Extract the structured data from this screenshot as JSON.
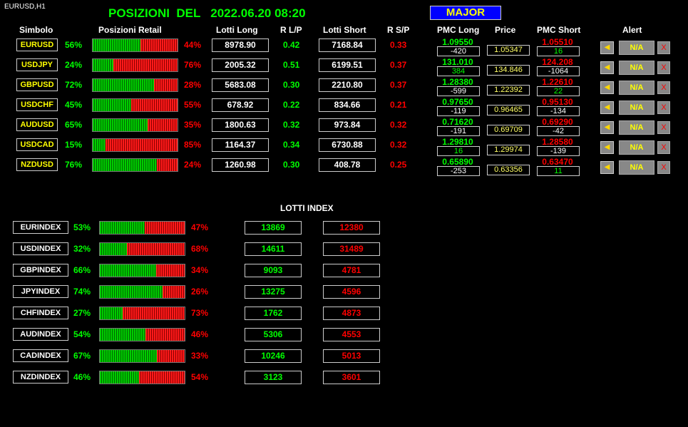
{
  "chart_label": "EURUSD,H1",
  "title": {
    "prefix": "POSIZIONI  DEL",
    "datetime": "2022.06.20 08:20"
  },
  "major_button": "MAJOR",
  "headers": {
    "symbol": "Simbolo",
    "retail": "Posizioni Retail",
    "lots_long": "Lotti Long",
    "r_lp": "R L/P",
    "lots_short": "Lotti Short",
    "r_sp": "R S/P",
    "pmc_long": "PMC Long",
    "price": "Price",
    "pmc_short": "PMC Short",
    "alert": "Alert"
  },
  "pairs": [
    {
      "symbol": "EURUSD",
      "long_pct": "56%",
      "long_frac": 0.56,
      "short_pct": "44%",
      "lots_long": "8978.90",
      "r_lp": "0.42",
      "lots_short": "7168.84",
      "r_sp": "0.33",
      "pmc_long": "1.09550",
      "pmc_long_diff": "-420",
      "pmc_long_diff_color": "#ffffff",
      "price": "1.05347",
      "pmc_short": "1.05510",
      "pmc_short_diff": "16",
      "pmc_short_diff_color": "#00ff00",
      "alert": "N/A"
    },
    {
      "symbol": "USDJPY",
      "long_pct": "24%",
      "long_frac": 0.24,
      "short_pct": "76%",
      "lots_long": "2005.32",
      "r_lp": "0.51",
      "lots_short": "6199.51",
      "r_sp": "0.37",
      "pmc_long": "131.010",
      "pmc_long_diff": "384",
      "pmc_long_diff_color": "#00ff00",
      "price": "134.846",
      "pmc_short": "124.208",
      "pmc_short_diff": "-1064",
      "pmc_short_diff_color": "#ffffff",
      "alert": "N/A"
    },
    {
      "symbol": "GBPUSD",
      "long_pct": "72%",
      "long_frac": 0.72,
      "short_pct": "28%",
      "lots_long": "5683.08",
      "r_lp": "0.30",
      "lots_short": "2210.80",
      "r_sp": "0.37",
      "pmc_long": "1.28380",
      "pmc_long_diff": "-599",
      "pmc_long_diff_color": "#ffffff",
      "price": "1.22392",
      "pmc_short": "1.22610",
      "pmc_short_diff": "22",
      "pmc_short_diff_color": "#00ff00",
      "alert": "N/A"
    },
    {
      "symbol": "USDCHF",
      "long_pct": "45%",
      "long_frac": 0.45,
      "short_pct": "55%",
      "lots_long": "678.92",
      "r_lp": "0.22",
      "lots_short": "834.66",
      "r_sp": "0.21",
      "pmc_long": "0.97650",
      "pmc_long_diff": "-119",
      "pmc_long_diff_color": "#ffffff",
      "price": "0.96465",
      "pmc_short": "0.95130",
      "pmc_short_diff": "-134",
      "pmc_short_diff_color": "#ffffff",
      "alert": "N/A"
    },
    {
      "symbol": "AUDUSD",
      "long_pct": "65%",
      "long_frac": 0.65,
      "short_pct": "35%",
      "lots_long": "1800.63",
      "r_lp": "0.32",
      "lots_short": "973.84",
      "r_sp": "0.32",
      "pmc_long": "0.71620",
      "pmc_long_diff": "-191",
      "pmc_long_diff_color": "#ffffff",
      "price": "0.69709",
      "pmc_short": "0.69290",
      "pmc_short_diff": "-42",
      "pmc_short_diff_color": "#ffffff",
      "alert": "N/A"
    },
    {
      "symbol": "USDCAD",
      "long_pct": "15%",
      "long_frac": 0.15,
      "short_pct": "85%",
      "lots_long": "1164.37",
      "r_lp": "0.34",
      "lots_short": "6730.88",
      "r_sp": "0.32",
      "pmc_long": "1.29810",
      "pmc_long_diff": "16",
      "pmc_long_diff_color": "#00ff00",
      "price": "1.29974",
      "pmc_short": "1.28580",
      "pmc_short_diff": "-139",
      "pmc_short_diff_color": "#ffffff",
      "alert": "N/A"
    },
    {
      "symbol": "NZDUSD",
      "long_pct": "76%",
      "long_frac": 0.76,
      "short_pct": "24%",
      "lots_long": "1260.98",
      "r_lp": "0.30",
      "lots_short": "408.78",
      "r_sp": "0.25",
      "pmc_long": "0.65890",
      "pmc_long_diff": "-253",
      "pmc_long_diff_color": "#ffffff",
      "price": "0.63356",
      "pmc_short": "0.63470",
      "pmc_short_diff": "11",
      "pmc_short_diff_color": "#00ff00",
      "alert": "N/A"
    }
  ],
  "index_section_title": "LOTTI INDEX",
  "indexes": [
    {
      "name": "EURINDEX",
      "long_pct": "53%",
      "long_frac": 0.53,
      "short_pct": "47%",
      "lots_long": "13869",
      "lots_short": "12380"
    },
    {
      "name": "USDINDEX",
      "long_pct": "32%",
      "long_frac": 0.32,
      "short_pct": "68%",
      "lots_long": "14611",
      "lots_short": "31489"
    },
    {
      "name": "GBPINDEX",
      "long_pct": "66%",
      "long_frac": 0.66,
      "short_pct": "34%",
      "lots_long": "9093",
      "lots_short": "4781"
    },
    {
      "name": "JPYINDEX",
      "long_pct": "74%",
      "long_frac": 0.74,
      "short_pct": "26%",
      "lots_long": "13275",
      "lots_short": "4596"
    },
    {
      "name": "CHFINDEX",
      "long_pct": "27%",
      "long_frac": 0.27,
      "short_pct": "73%",
      "lots_long": "1762",
      "lots_short": "4873"
    },
    {
      "name": "AUDINDEX",
      "long_pct": "54%",
      "long_frac": 0.54,
      "short_pct": "46%",
      "lots_long": "5306",
      "lots_short": "4553"
    },
    {
      "name": "CADINDEX",
      "long_pct": "67%",
      "long_frac": 0.67,
      "short_pct": "33%",
      "lots_long": "10246",
      "lots_short": "5013"
    },
    {
      "name": "NZDINDEX",
      "long_pct": "46%",
      "long_frac": 0.46,
      "short_pct": "54%",
      "lots_long": "3123",
      "lots_short": "3601"
    }
  ],
  "icons": {
    "alert": "bell-icon",
    "close": "close-icon"
  },
  "colors": {
    "long": "#00ff00",
    "short": "#ff0000",
    "symbol": "#ffff00",
    "major_bg": "#0000ff"
  }
}
